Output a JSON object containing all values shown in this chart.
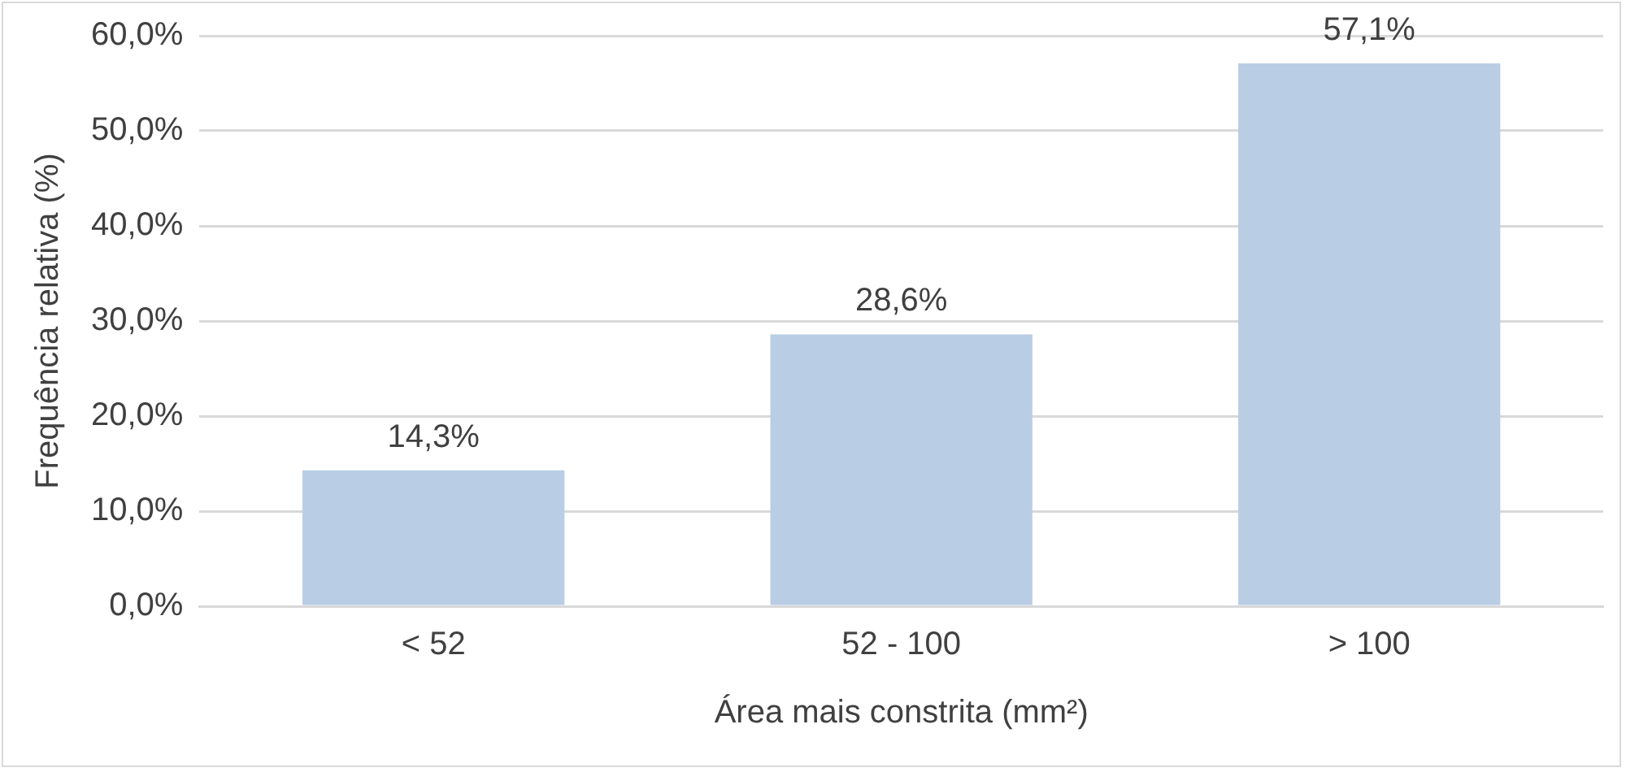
{
  "chart_data": {
    "type": "bar",
    "xlabel": "Área mais constrita (mm²)",
    "ylabel": "Frequência relativa (%)",
    "categories": [
      "< 52",
      "52 - 100",
      "> 100"
    ],
    "values": [
      14.3,
      28.6,
      57.1
    ],
    "color": "#b9cde5",
    "value_labels": [
      "14,3%",
      "28,6%",
      "57,1%"
    ],
    "ylim": [
      0,
      60
    ],
    "yticks": [
      {
        "value": 0,
        "label": "0,0%"
      },
      {
        "value": 10,
        "label": "10,0%"
      },
      {
        "value": 20,
        "label": "20,0%"
      },
      {
        "value": 30,
        "label": "30,0%"
      },
      {
        "value": 40,
        "label": "40,0%"
      },
      {
        "value": 50,
        "label": "50,0%"
      },
      {
        "value": 60,
        "label": "60,0%"
      }
    ],
    "grid": "y"
  }
}
